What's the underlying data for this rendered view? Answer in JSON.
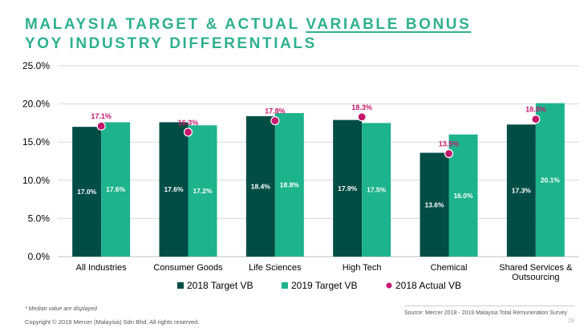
{
  "header": {
    "line1_prefix": "MALAYSIA TARGET & ACTUAL ",
    "line1_underlined": "VARIABLE BONUS",
    "line2": "YOY INDUSTRY DIFFERENTIALS"
  },
  "footer": {
    "note": "* Median value are displayed",
    "copyright": "Copyright © 2019 Mercer (Malaysia) Sdn Bhd. All rights reserved.",
    "source": "Source: Mercer 2018 - 2019 Malaysia Total Remuneration Survey",
    "page": "19"
  },
  "colors": {
    "title": "#2fb08f",
    "target_2018": "#004d46",
    "target_2019": "#1db38d",
    "actual_2018": "#c3186c",
    "value_label": "#ffffff",
    "gridline": "#d9d9d9"
  },
  "chart_data": {
    "type": "bar",
    "categories": [
      "All Industries",
      "Consumer Goods",
      "Life Sciences",
      "High Tech",
      "Chemical",
      "Shared Services & Outsourcing"
    ],
    "category_lines": [
      [
        "All Industries"
      ],
      [
        "Consumer Goods"
      ],
      [
        "Life Sciences"
      ],
      [
        "High Tech"
      ],
      [
        "Chemical"
      ],
      [
        "Shared Services &",
        "Outsourcing"
      ]
    ],
    "series": [
      {
        "name": "2018 Target VB",
        "type": "bar",
        "values": [
          17.0,
          17.6,
          18.4,
          17.9,
          13.6,
          17.3
        ],
        "labels": [
          "17.0%",
          "17.6%",
          "18.4%",
          "17.9%",
          "13.6%",
          "17.3%"
        ]
      },
      {
        "name": "2019 Target VB",
        "type": "bar",
        "values": [
          17.6,
          17.2,
          18.8,
          17.5,
          16.0,
          20.1
        ],
        "labels": [
          "17.6%",
          "17.2%",
          "18.8%",
          "17.5%",
          "16.0%",
          "20.1%"
        ]
      },
      {
        "name": "2018 Actual VB",
        "type": "scatter",
        "values": [
          17.1,
          16.3,
          17.8,
          18.3,
          13.5,
          18.0
        ],
        "labels": [
          "17.1%",
          "16.3%",
          "17.8%",
          "18.3%",
          "13.5%",
          "18.0%"
        ]
      }
    ],
    "y_ticks": [
      "0.0%",
      "5.0%",
      "10.0%",
      "15.0%",
      "20.0%",
      "25.0%"
    ],
    "ylim": [
      0,
      25
    ],
    "y_step": 5,
    "grid": true,
    "legend_position": "bottom"
  }
}
